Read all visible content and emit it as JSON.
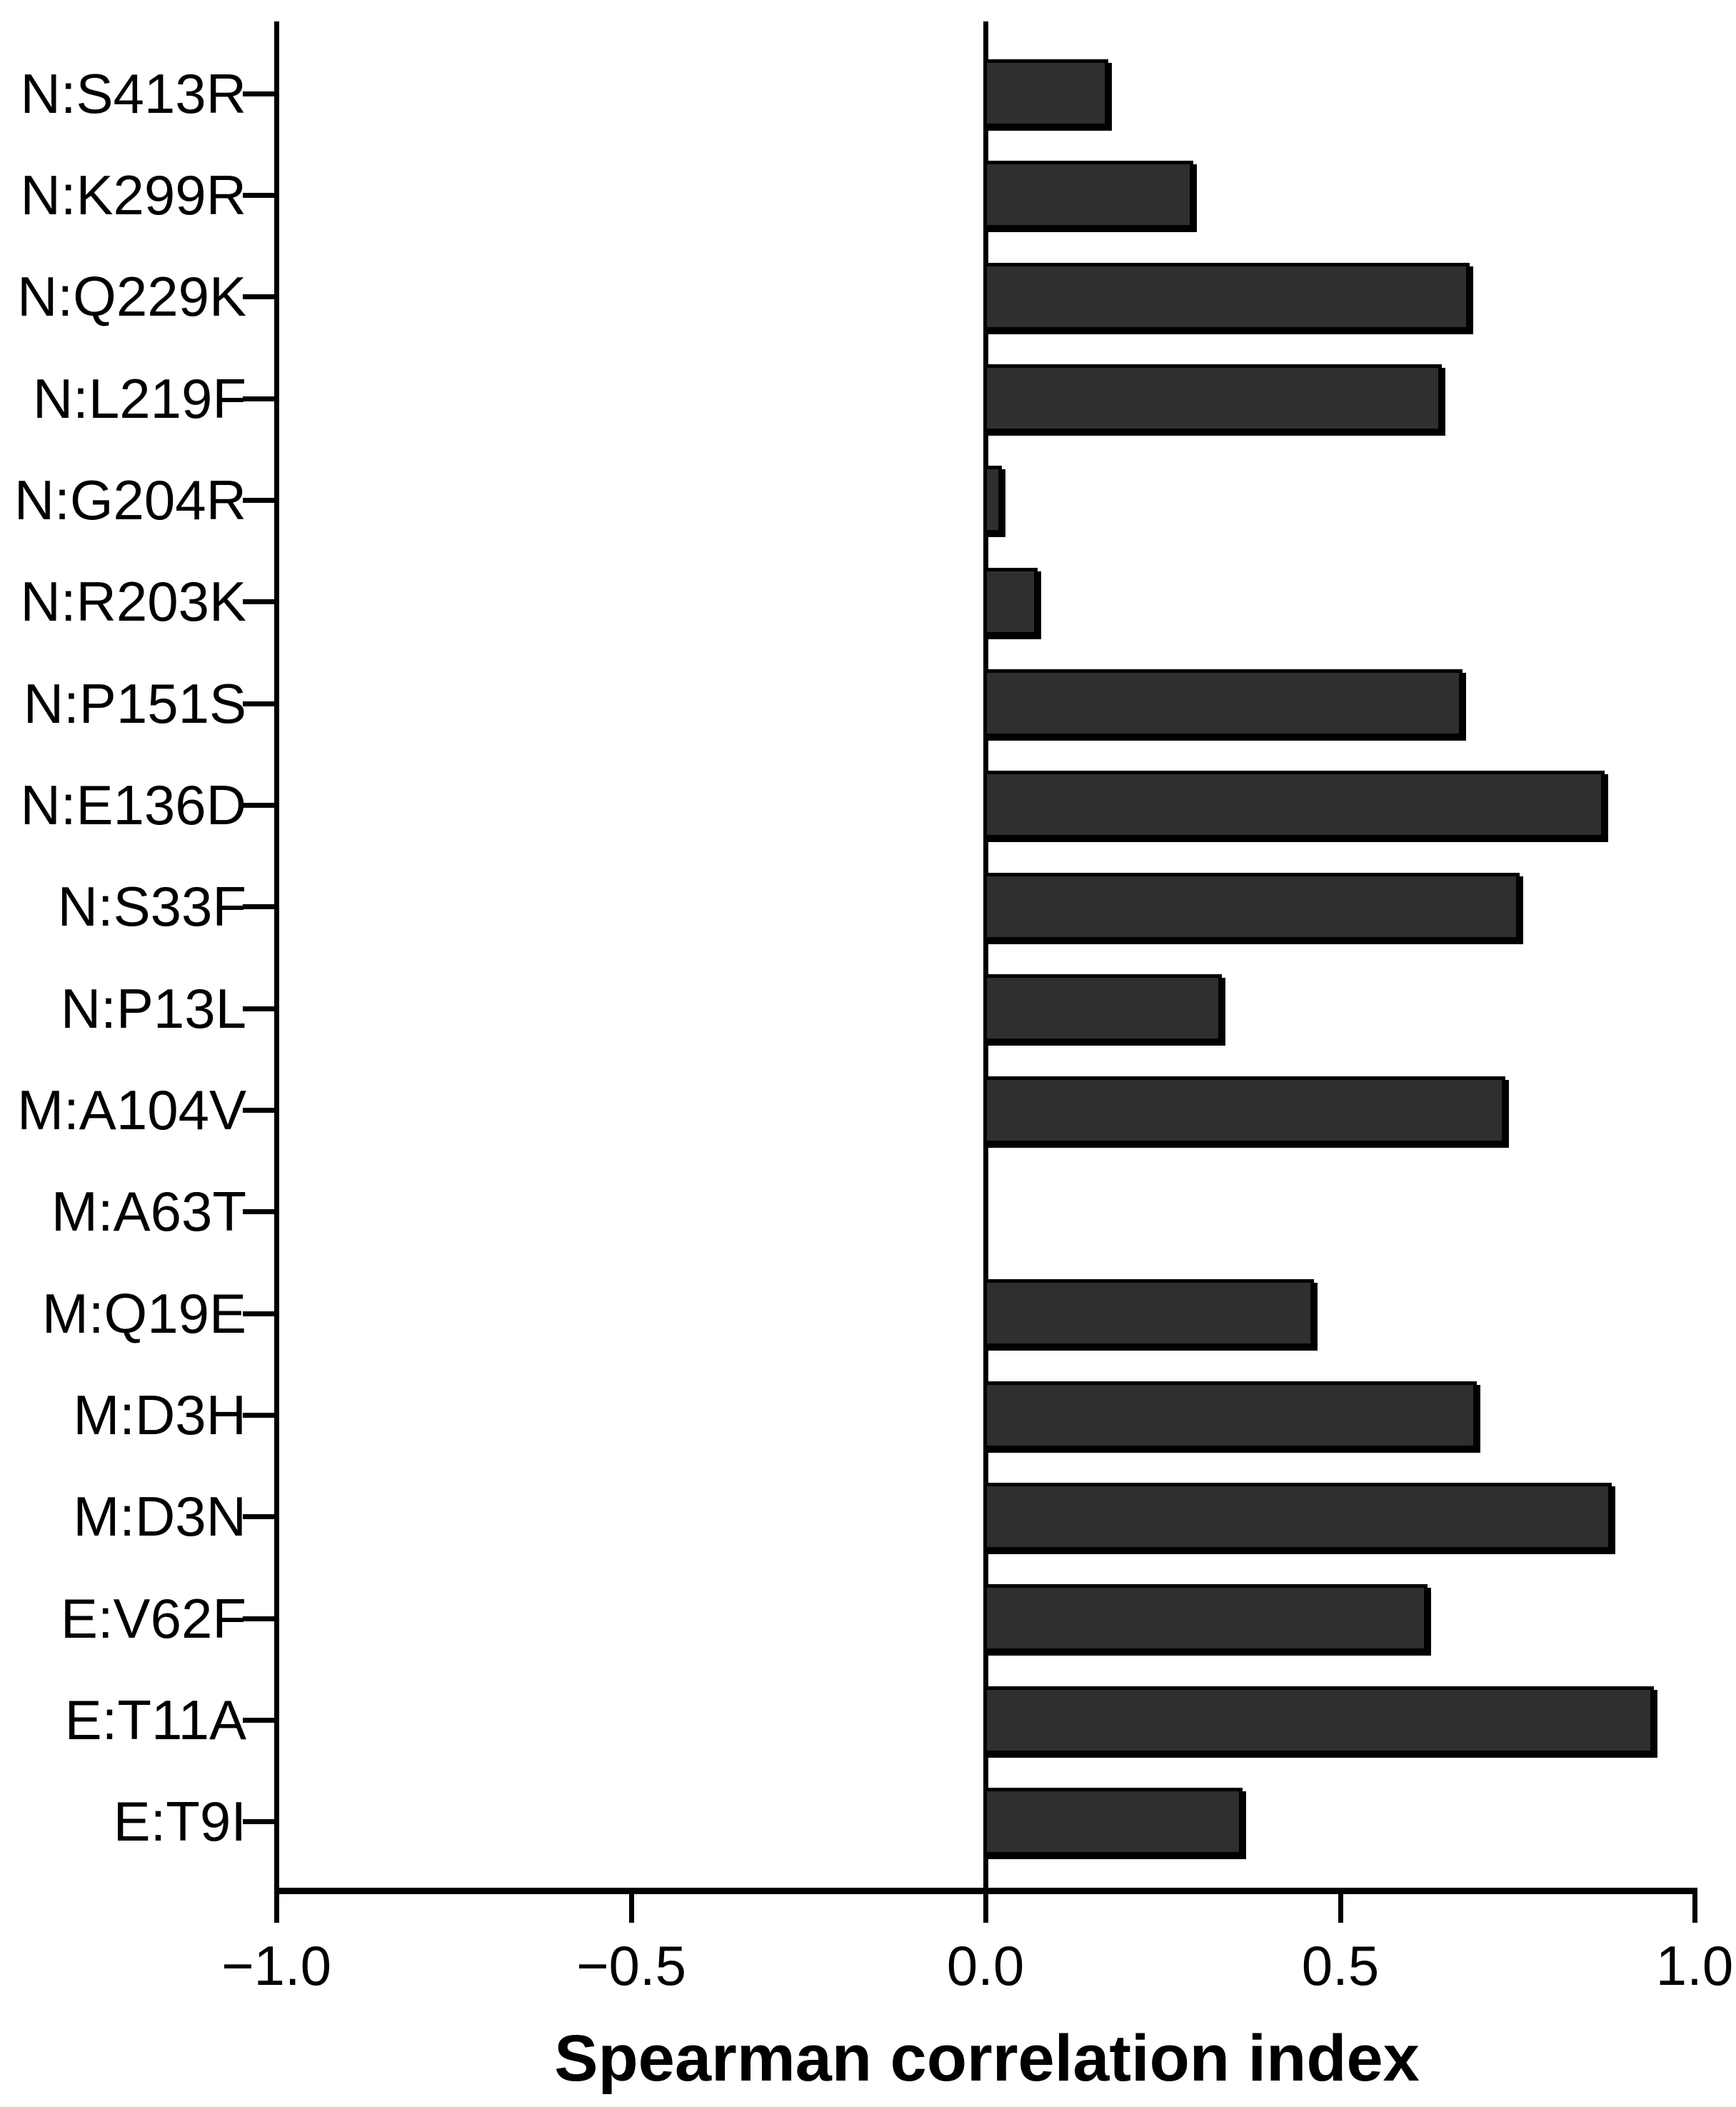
{
  "figure": {
    "background_color": "#ffffff",
    "text_color": "#000000"
  },
  "chart_data": {
    "type": "bar",
    "orientation": "horizontal",
    "title": "",
    "xlabel": "Spearman correlation index",
    "ylabel": "",
    "categories": [
      "N:S413R",
      "N:K299R",
      "N:Q229K",
      "N:L219F",
      "N:G204R",
      "N:R203K",
      "N:P151S",
      "N:E136D",
      "N:S33F",
      "N:P13L",
      "M:A104V",
      "M:A63T",
      "M:Q19E",
      "M:D3H",
      "M:D3N",
      "E:V62F",
      "E:T11A",
      "E:T9I"
    ],
    "values": [
      0.17,
      0.29,
      0.68,
      0.64,
      0.02,
      0.07,
      0.67,
      0.87,
      0.75,
      0.33,
      0.73,
      0.0,
      0.46,
      0.69,
      0.88,
      0.62,
      0.94,
      0.36
    ],
    "xlim": [
      -1.0,
      1.0
    ],
    "xticks": [
      -1.0,
      -0.5,
      0.0,
      0.5,
      1.0
    ],
    "xtick_labels": [
      "−1.0",
      "−0.5",
      "0.0",
      "0.5",
      "1.0"
    ],
    "bar_color": "#2F2F2F",
    "bar_border_color": "#000000",
    "grid": false,
    "legend": null
  }
}
